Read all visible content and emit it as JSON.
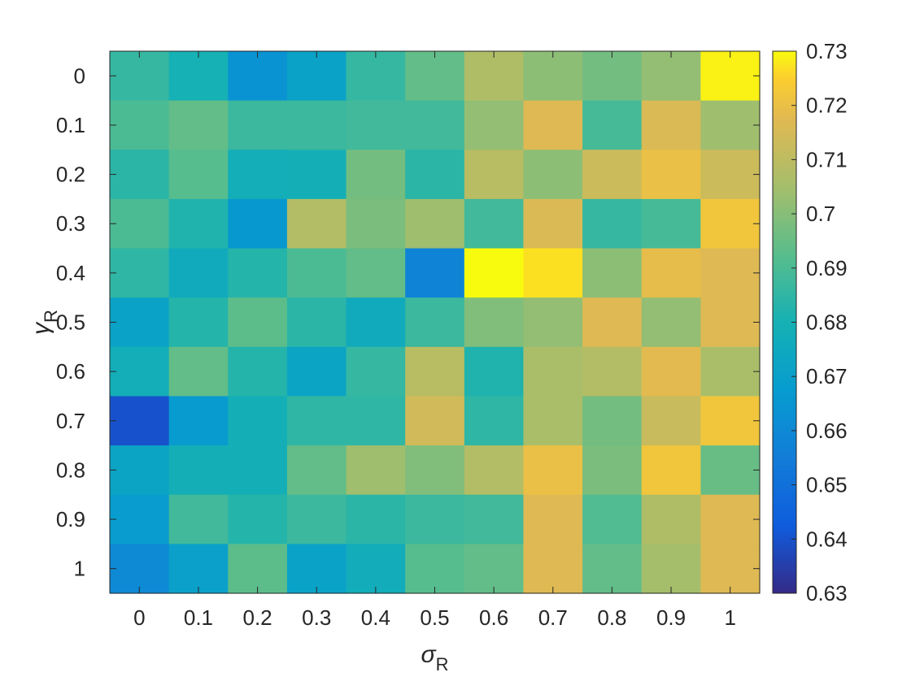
{
  "chart_data": {
    "type": "heatmap",
    "colormap": "parula",
    "x_categories": [
      "0",
      "0.1",
      "0.2",
      "0.3",
      "0.4",
      "0.5",
      "0.6",
      "0.7",
      "0.8",
      "0.9",
      "1"
    ],
    "y_categories": [
      "0",
      "0.1",
      "0.2",
      "0.3",
      "0.4",
      "0.5",
      "0.6",
      "0.7",
      "0.8",
      "0.9",
      "1"
    ],
    "xlabel": {
      "symbol": "σ",
      "subscript": "R"
    },
    "ylabel": {
      "symbol": "γ",
      "subscript": "R"
    },
    "color_range": [
      0.63,
      0.73
    ],
    "colorbar_ticks": [
      "0.63",
      "0.64",
      "0.65",
      "0.66",
      "0.67",
      "0.68",
      "0.69",
      "0.7",
      "0.71",
      "0.72",
      "0.73"
    ],
    "values": [
      [
        0.686,
        0.68,
        0.664,
        0.671,
        0.686,
        0.694,
        0.707,
        0.701,
        0.697,
        0.702,
        0.729
      ],
      [
        0.69,
        0.694,
        0.687,
        0.687,
        0.688,
        0.688,
        0.702,
        0.717,
        0.689,
        0.716,
        0.704
      ],
      [
        0.684,
        0.692,
        0.678,
        0.679,
        0.697,
        0.684,
        0.709,
        0.701,
        0.713,
        0.72,
        0.713
      ],
      [
        0.69,
        0.682,
        0.666,
        0.708,
        0.698,
        0.704,
        0.688,
        0.716,
        0.686,
        0.689,
        0.722
      ],
      [
        0.685,
        0.676,
        0.683,
        0.69,
        0.694,
        0.658,
        0.73,
        0.727,
        0.701,
        0.719,
        0.717
      ],
      [
        0.671,
        0.683,
        0.693,
        0.684,
        0.676,
        0.687,
        0.699,
        0.702,
        0.717,
        0.702,
        0.717
      ],
      [
        0.678,
        0.694,
        0.683,
        0.672,
        0.686,
        0.709,
        0.682,
        0.706,
        0.708,
        0.718,
        0.706
      ],
      [
        0.64,
        0.667,
        0.679,
        0.685,
        0.685,
        0.714,
        0.685,
        0.706,
        0.697,
        0.712,
        0.722
      ],
      [
        0.672,
        0.679,
        0.679,
        0.694,
        0.704,
        0.699,
        0.708,
        0.72,
        0.698,
        0.722,
        0.695
      ],
      [
        0.668,
        0.688,
        0.683,
        0.687,
        0.684,
        0.687,
        0.688,
        0.717,
        0.691,
        0.707,
        0.717
      ],
      [
        0.66,
        0.67,
        0.693,
        0.671,
        0.677,
        0.692,
        0.694,
        0.717,
        0.694,
        0.705,
        0.717
      ]
    ]
  }
}
